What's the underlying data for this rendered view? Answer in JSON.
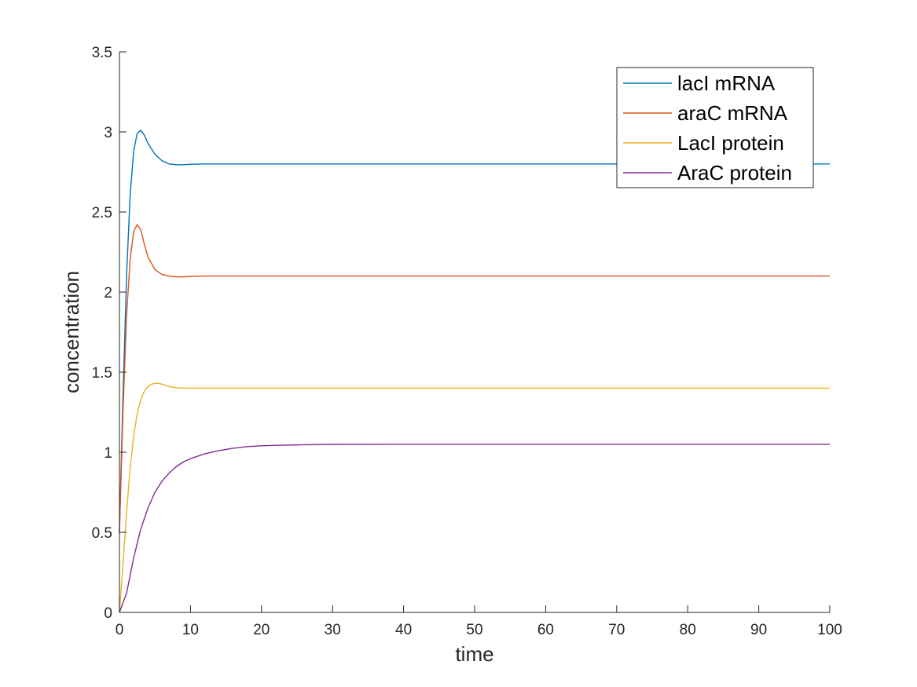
{
  "chart_data": {
    "type": "line",
    "title": "",
    "xlabel": "time",
    "ylabel": "concentration",
    "xlim": [
      0,
      100
    ],
    "ylim": [
      0,
      3.5
    ],
    "xticks": [
      0,
      10,
      20,
      30,
      40,
      50,
      60,
      70,
      80,
      90,
      100
    ],
    "yticks": [
      0,
      0.5,
      1,
      1.5,
      2,
      2.5,
      3,
      3.5
    ],
    "grid": false,
    "legend_position": "top-right",
    "series": [
      {
        "name": "lacI mRNA",
        "color": "#0072BD",
        "x": [
          0,
          0.5,
          1,
          1.5,
          2,
          2.5,
          3,
          3.5,
          4,
          5,
          6,
          7,
          8,
          9,
          10,
          12,
          15,
          20,
          25,
          30,
          40,
          50,
          60,
          70,
          80,
          90,
          100
        ],
        "y": [
          0.5,
          1.35,
          2.1,
          2.6,
          2.88,
          2.99,
          3.01,
          2.98,
          2.93,
          2.86,
          2.82,
          2.8,
          2.795,
          2.795,
          2.798,
          2.8,
          2.8,
          2.8,
          2.8,
          2.8,
          2.8,
          2.8,
          2.8,
          2.8,
          2.8,
          2.8,
          2.8
        ]
      },
      {
        "name": "araC mRNA",
        "color": "#D95319",
        "x": [
          0,
          0.5,
          1,
          1.5,
          2,
          2.5,
          3,
          3.5,
          4,
          5,
          6,
          7,
          8,
          9,
          10,
          12,
          15,
          20,
          25,
          30,
          40,
          50,
          60,
          70,
          80,
          90,
          100
        ],
        "y": [
          0.5,
          1.25,
          1.85,
          2.2,
          2.38,
          2.42,
          2.39,
          2.3,
          2.22,
          2.14,
          2.11,
          2.1,
          2.095,
          2.095,
          2.098,
          2.1,
          2.1,
          2.1,
          2.1,
          2.1,
          2.1,
          2.1,
          2.1,
          2.1,
          2.1,
          2.1,
          2.1
        ]
      },
      {
        "name": "LacI protein",
        "color": "#EDB120",
        "x": [
          0,
          0.5,
          1,
          1.5,
          2,
          2.5,
          3,
          3.5,
          4,
          4.5,
          5,
          5.5,
          6,
          7,
          8,
          9,
          10,
          15,
          20,
          30,
          40,
          50,
          60,
          70,
          80,
          90,
          100
        ],
        "y": [
          0,
          0.3,
          0.62,
          0.9,
          1.1,
          1.24,
          1.33,
          1.38,
          1.41,
          1.425,
          1.43,
          1.43,
          1.425,
          1.41,
          1.402,
          1.4,
          1.4,
          1.4,
          1.4,
          1.4,
          1.4,
          1.4,
          1.4,
          1.4,
          1.4,
          1.4,
          1.4
        ]
      },
      {
        "name": "AraC protein",
        "color": "#7E2F8E",
        "x": [
          0,
          1,
          2,
          3,
          4,
          5,
          6,
          7,
          8,
          9,
          10,
          12,
          14,
          16,
          18,
          20,
          22,
          25,
          30,
          40,
          50,
          60,
          70,
          80,
          90,
          100
        ],
        "y": [
          0,
          0.12,
          0.34,
          0.52,
          0.65,
          0.75,
          0.82,
          0.87,
          0.91,
          0.94,
          0.96,
          0.99,
          1.01,
          1.025,
          1.035,
          1.04,
          1.043,
          1.046,
          1.049,
          1.05,
          1.05,
          1.05,
          1.05,
          1.05,
          1.05,
          1.05
        ]
      }
    ]
  }
}
